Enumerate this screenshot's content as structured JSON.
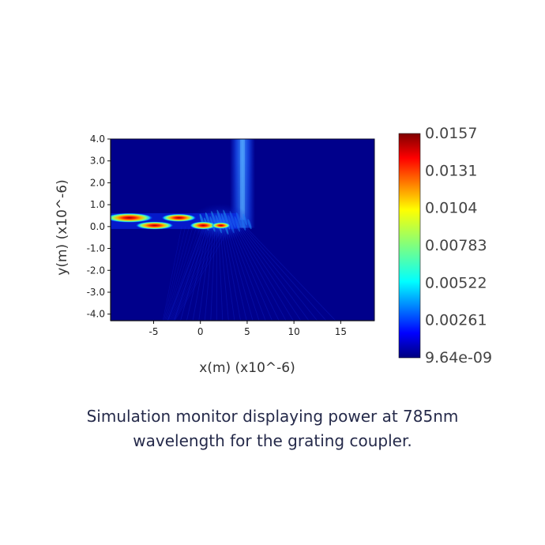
{
  "chart_data": {
    "type": "heatmap",
    "title": "",
    "xlabel": "x(m) (x10^-6)",
    "ylabel": "y(m) (x10^-6)",
    "xlim": [
      -9.6,
      18.6
    ],
    "ylim": [
      -4.3,
      4.0
    ],
    "x_ticks": [
      "-5",
      "0",
      "5",
      "10",
      "15"
    ],
    "x_tick_values": [
      -5,
      0,
      5,
      10,
      15
    ],
    "y_ticks": [
      "4.0",
      "3.0",
      "2.0",
      "1.0",
      "0.0",
      "-1.0",
      "-2.0",
      "-3.0",
      "-4.0"
    ],
    "y_tick_values": [
      4,
      3,
      2,
      1,
      0,
      -1,
      -2,
      -3,
      -4
    ],
    "colorscale": "jet",
    "colorbar": {
      "labels": [
        "0.0157",
        "0.0131",
        "0.0104",
        "0.00783",
        "0.00522",
        "0.00261",
        "9.64e-09"
      ],
      "min": 9.64e-09,
      "max": 0.0157
    },
    "background_color": "#00008b",
    "features": [
      {
        "name": "waveguide mode lobes",
        "y": 0.25,
        "x_range": [
          -9.6,
          4.0
        ],
        "peak": 0.0157
      },
      {
        "name": "diffracted beam",
        "x": 4.5,
        "y_range": [
          0.3,
          4.0
        ],
        "peak": 0.0045
      },
      {
        "name": "grating region",
        "x_range": [
          0.0,
          5.0
        ],
        "y": 0.1
      }
    ]
  },
  "caption": {
    "line1": "Simulation monitor displaying power at 785nm",
    "line2": "wavelength for the grating coupler."
  }
}
